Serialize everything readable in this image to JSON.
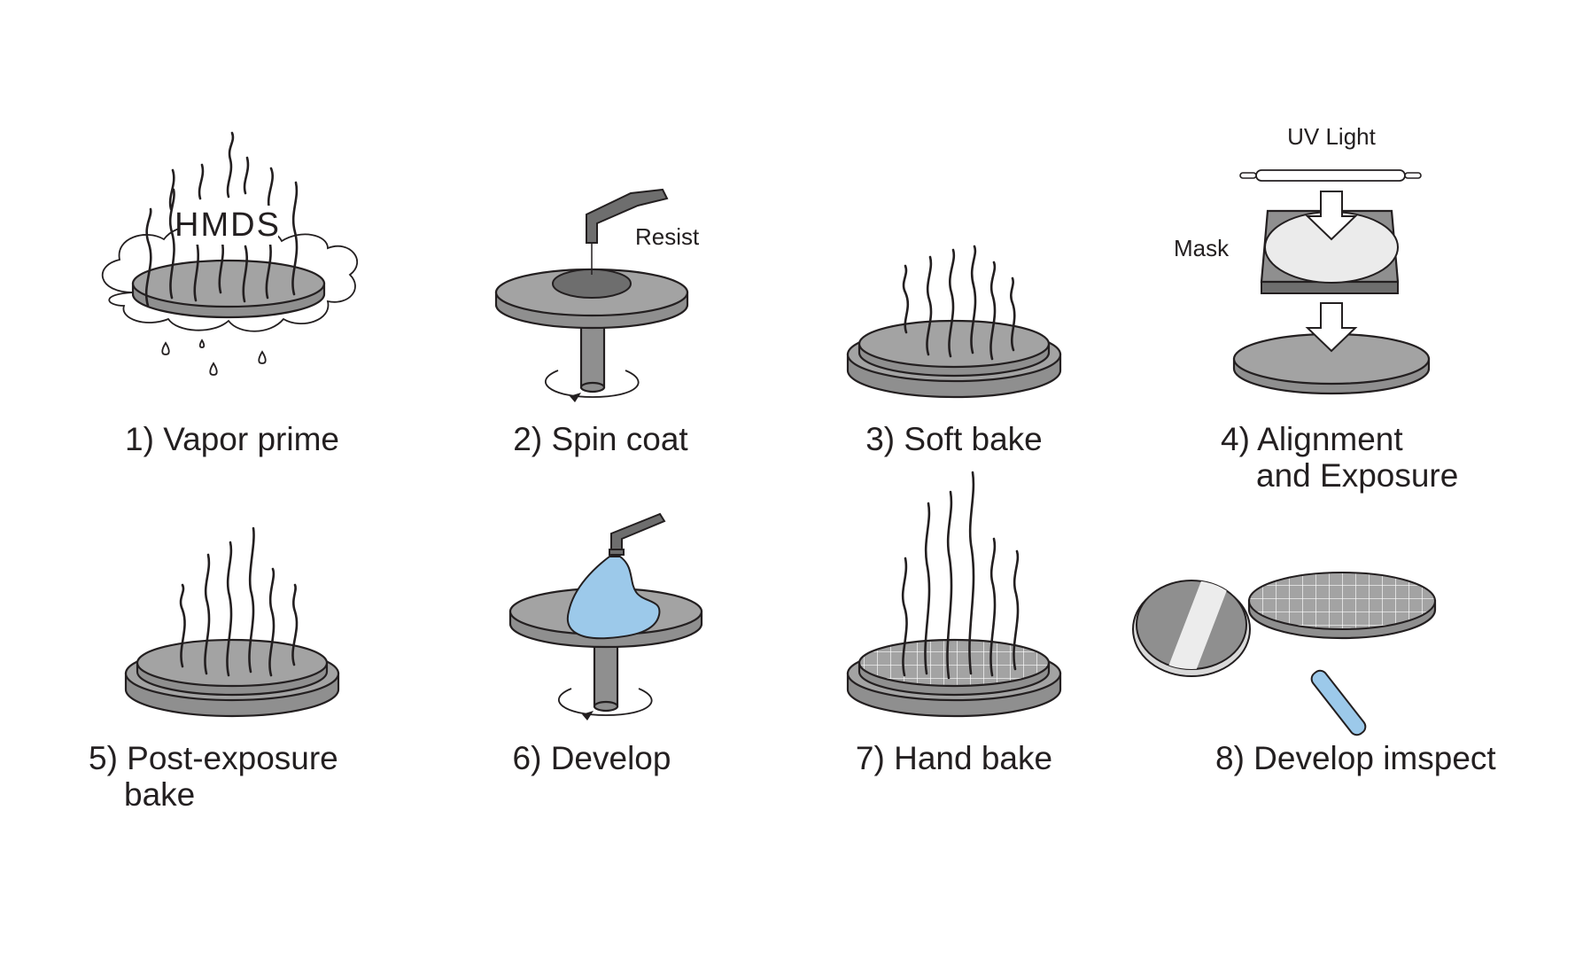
{
  "steps": [
    {
      "label": "1) Vapor prime",
      "annotation": "HMDS"
    },
    {
      "label": "2) Spin coat",
      "annotation": "Resist"
    },
    {
      "label": "3) Soft bake"
    },
    {
      "label_line1": "4) Alignment",
      "label_line2": "and Exposure",
      "annotation_light": "UV Light",
      "annotation_mask": "Mask"
    },
    {
      "label_line1": "5) Post-exposure",
      "label_line2": "bake"
    },
    {
      "label": "6) Develop"
    },
    {
      "label": "7) Hand bake"
    },
    {
      "label": "8) Develop imspect"
    }
  ],
  "colors": {
    "wafer": "#8f8f8f",
    "wafer_top": "#a3a3a3",
    "resist": "#6e6e6e",
    "developer": "#9cc9ea",
    "mask_window": "#ebebeb",
    "outline": "#231f20"
  }
}
